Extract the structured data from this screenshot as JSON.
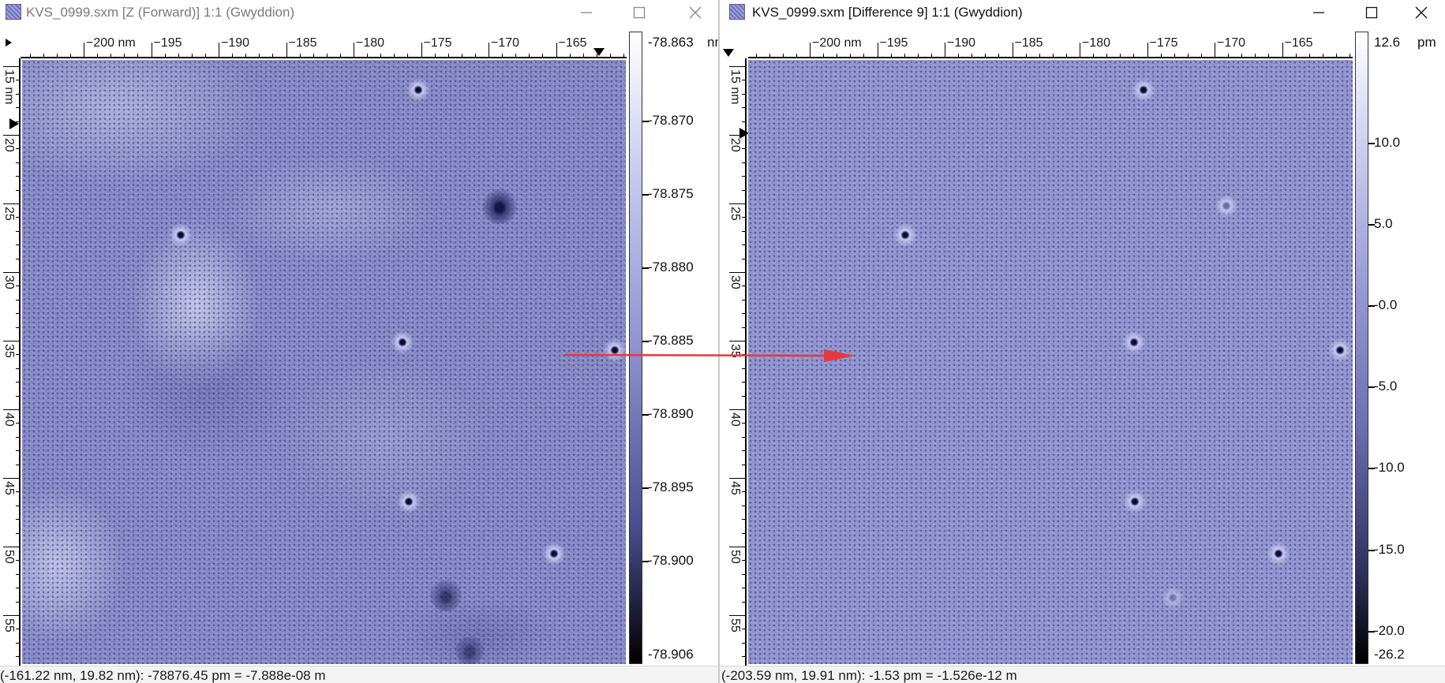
{
  "left": {
    "title": "KVS_0999.sxm [Z (Forward)] 1:1 (Gwyddion)",
    "hruler_labels": [
      "−200 nm",
      "−195",
      "−190",
      "−185",
      "−180",
      "−175",
      "−170",
      "−165"
    ],
    "vruler_labels": [
      "15 nm",
      "20",
      "25",
      "30",
      "35",
      "40",
      "45",
      "50",
      "55"
    ],
    "colorbar": {
      "max": "-78.863",
      "unit": "nm",
      "labels": [
        "-78.870",
        "-78.875",
        "-78.880",
        "-78.885",
        "-78.890",
        "-78.895",
        "-78.900"
      ],
      "min": "-78.906"
    },
    "status": "(-161.22 nm, 19.82 nm): -78876.45 pm = -7.888e-08 m"
  },
  "right": {
    "title": "KVS_0999.sxm [Difference 9] 1:1 (Gwyddion)",
    "hruler_labels": [
      "−200 nm",
      "−195",
      "−190",
      "−185",
      "−180",
      "−175",
      "−170",
      "−165"
    ],
    "vruler_labels": [
      "15 nm",
      "20",
      "25",
      "30",
      "35",
      "40",
      "45",
      "50",
      "55"
    ],
    "colorbar": {
      "max": "12.6",
      "unit": "pm",
      "labels": [
        "10.0",
        "5.0",
        "-0.0",
        "-5.0",
        "-10.0",
        "-15.0",
        "-20.0"
      ],
      "min": "-26.2"
    },
    "status": "(-203.59 nm, 19.91 nm): -1.53 pm = -1.526e-12 m"
  },
  "colors": {
    "scan_base": "#8588c6",
    "annotation_arrow": "#e8383d"
  },
  "icons": {
    "app": "gwyddion-window-icon",
    "minimize": "minimize-icon",
    "maximize": "maximize-icon",
    "close": "close-icon"
  }
}
